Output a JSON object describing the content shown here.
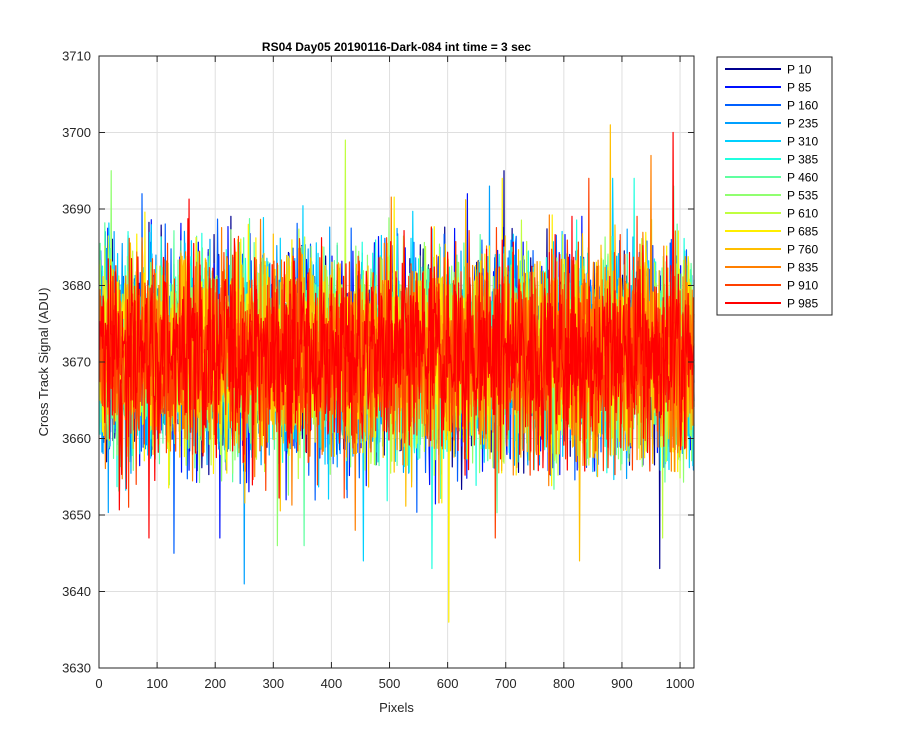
{
  "chart_data": {
    "type": "line",
    "title": "RS04 Day05 20190116-Dark-084 int time = 3 sec",
    "xlabel": "Pixels",
    "ylabel": "Cross Track Signal (ADU)",
    "xlim": [
      0,
      1024
    ],
    "ylim": [
      3630,
      3710
    ],
    "xticks": [
      0,
      100,
      200,
      300,
      400,
      500,
      600,
      700,
      800,
      900,
      1000
    ],
    "xtick_labels": [
      "0",
      "100",
      "200",
      "300",
      "400",
      "500",
      "600",
      "700",
      "800",
      "900",
      "1000"
    ],
    "yticks": [
      3630,
      3640,
      3650,
      3660,
      3670,
      3680,
      3690,
      3700,
      3710
    ],
    "ytick_labels": [
      "3630",
      "3640",
      "3650",
      "3660",
      "3670",
      "3680",
      "3690",
      "3700",
      "3710"
    ],
    "grid": true,
    "legend_position": "outside-top-right",
    "series": [
      {
        "name": "P 10",
        "color": "#00008f",
        "mean": 3671,
        "noise": 6.5,
        "min": 3643,
        "max": 3695
      },
      {
        "name": "P 85",
        "color": "#0010ff",
        "mean": 3671,
        "noise": 6.5,
        "min": 3647,
        "max": 3692
      },
      {
        "name": "P 160",
        "color": "#0060ff",
        "mean": 3671,
        "noise": 6.5,
        "min": 3645,
        "max": 3692
      },
      {
        "name": "P 235",
        "color": "#00a0ff",
        "mean": 3671,
        "noise": 6.5,
        "min": 3641,
        "max": 3693
      },
      {
        "name": "P 310",
        "color": "#00d0ff",
        "mean": 3671,
        "noise": 6.5,
        "min": 3644,
        "max": 3694
      },
      {
        "name": "P 385",
        "color": "#20ffdf",
        "mean": 3671,
        "noise": 6.5,
        "min": 3643,
        "max": 3694
      },
      {
        "name": "P 460",
        "color": "#60ffa0",
        "mean": 3671,
        "noise": 6.5,
        "min": 3646,
        "max": 3693
      },
      {
        "name": "P 535",
        "color": "#90ff70",
        "mean": 3671,
        "noise": 6.5,
        "min": 3646,
        "max": 3695
      },
      {
        "name": "P 610",
        "color": "#c0ff40",
        "mean": 3671,
        "noise": 6.5,
        "min": 3647,
        "max": 3699
      },
      {
        "name": "P 685",
        "color": "#ffef00",
        "mean": 3671,
        "noise": 6.5,
        "min": 3636,
        "max": 3694
      },
      {
        "name": "P 760",
        "color": "#ffbf00",
        "mean": 3671,
        "noise": 6.5,
        "min": 3644,
        "max": 3701
      },
      {
        "name": "P 835",
        "color": "#ff7f00",
        "mean": 3671,
        "noise": 6.5,
        "min": 3648,
        "max": 3697
      },
      {
        "name": "P 910",
        "color": "#ff4000",
        "mean": 3671,
        "noise": 6.5,
        "min": 3647,
        "max": 3694
      },
      {
        "name": "P 985",
        "color": "#ff0000",
        "mean": 3671,
        "noise": 6.5,
        "min": 3647,
        "max": 3700
      }
    ]
  }
}
